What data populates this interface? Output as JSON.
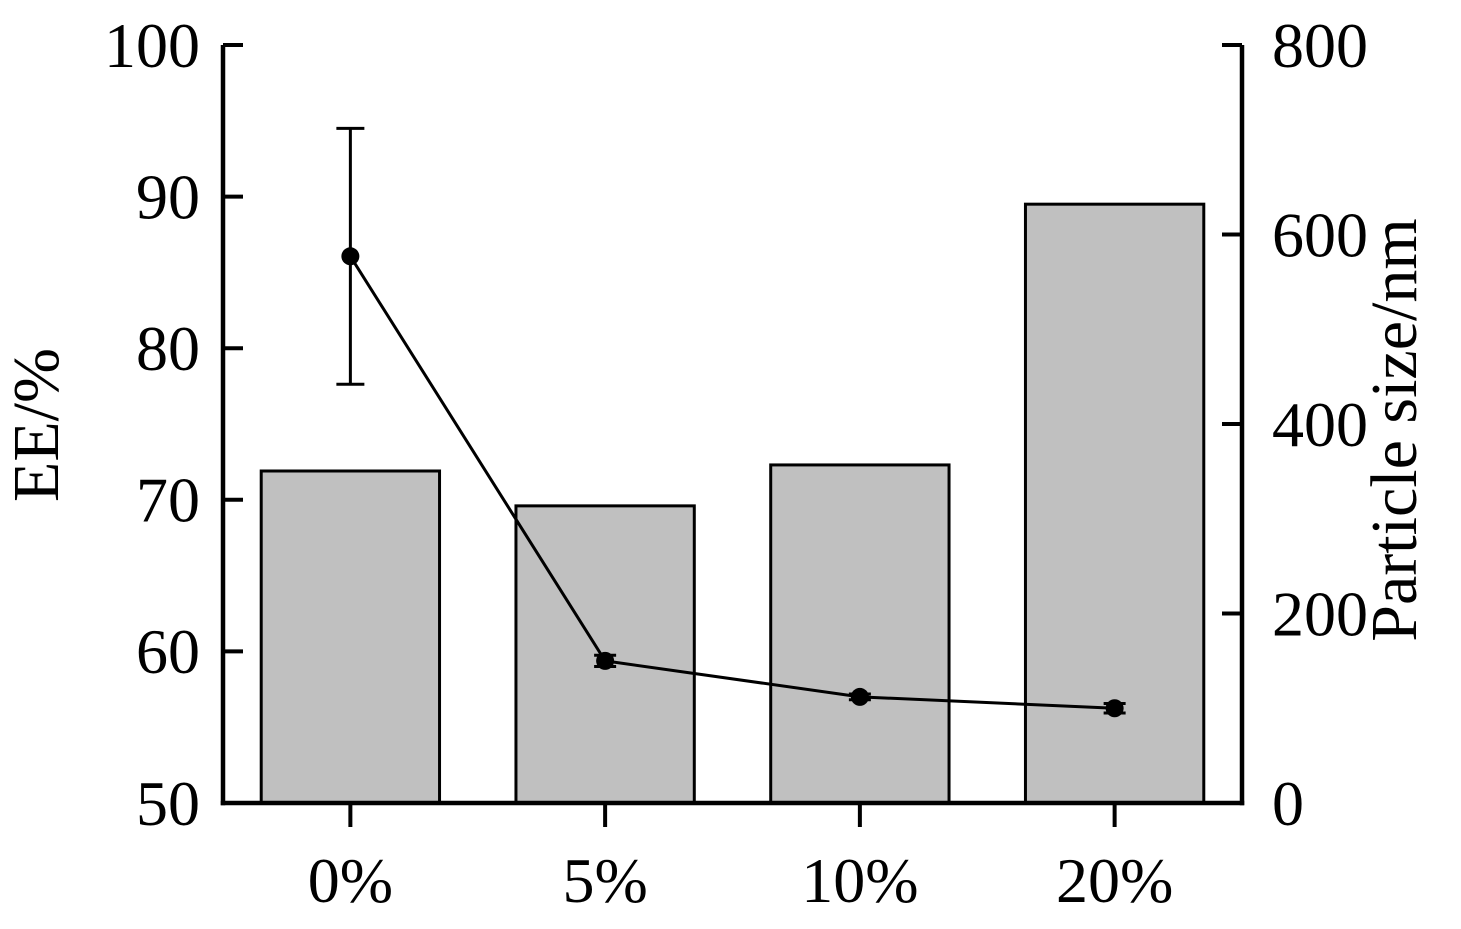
{
  "figure": {
    "background": "#ffffff",
    "axis_color": "#000000"
  },
  "chart_data": {
    "type": "bar+line-dual-axis",
    "categories": [
      "0%",
      "5%",
      "10%",
      "20%"
    ],
    "series": [
      {
        "name": "EE",
        "type": "bar",
        "axis": "left",
        "values": [
          71.9,
          69.6,
          72.3,
          89.5
        ],
        "fill": "#c0c0c0",
        "stroke": "#000000"
      },
      {
        "name": "Particle size",
        "type": "line",
        "axis": "right",
        "values": [
          577,
          150,
          112,
          100
        ],
        "errors": [
          135,
          6,
          3,
          5
        ],
        "color": "#000000",
        "marker": "filled-circle"
      }
    ],
    "left_axis": {
      "label": "EE/%",
      "min": 50,
      "max": 100,
      "ticks": [
        50,
        60,
        70,
        80,
        90,
        100
      ]
    },
    "right_axis": {
      "label": "Particle size/nm",
      "min": 0,
      "max": 800,
      "ticks": [
        0,
        200,
        400,
        600,
        800
      ]
    },
    "x_axis": {
      "tick_labels": [
        "0%",
        "5%",
        "10%",
        "20%"
      ]
    },
    "grid": false,
    "legend": "none",
    "title": ""
  }
}
